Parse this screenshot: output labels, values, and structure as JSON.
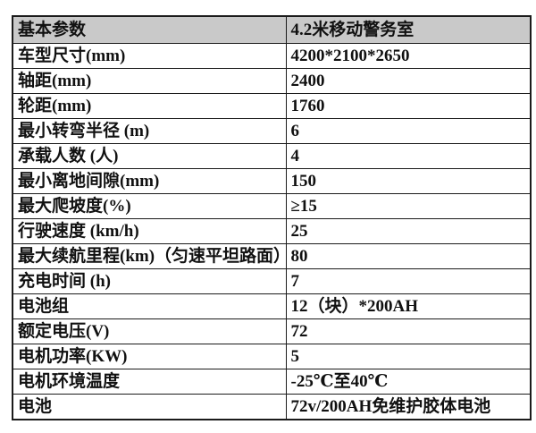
{
  "table": {
    "title": "vehicle-spec-table",
    "header": {
      "param": "基本参数",
      "value": "4.2米移动警务室"
    },
    "rows": [
      {
        "param": "车型尺寸(mm)",
        "value": "4200*2100*2650"
      },
      {
        "param": "轴距(mm)",
        "value": "2400"
      },
      {
        "param": "轮距(mm)",
        "value": "1760"
      },
      {
        "param": "最小转弯半径 (m)",
        "value": "6"
      },
      {
        "param": "承载人数 (人)",
        "value": "4"
      },
      {
        "param": "最小离地间隙(mm)",
        "value": "150"
      },
      {
        "param": "最大爬坡度(%)",
        "value": "≥15"
      },
      {
        "param": "行驶速度 (km/h)",
        "value": "25"
      },
      {
        "param": "最大续航里程(km)（匀速平坦路面）",
        "value": "80"
      },
      {
        "param": "充电时间 (h)",
        "value": "7"
      },
      {
        "param": "电池组",
        "value": "12（块）*200AH"
      },
      {
        "param": "额定电压(V)",
        "value": "72"
      },
      {
        "param": "电机功率(KW)",
        "value": "5"
      },
      {
        "param": "电机环境温度",
        "value": "-25℃至40℃"
      },
      {
        "param": "电池",
        "value": "72v/200AH免维护胶体电池"
      }
    ],
    "colors": {
      "header_bg": "#c9c9c9",
      "border": "#1b1b1b",
      "text": "#111111",
      "page_bg": "#ffffff"
    }
  }
}
